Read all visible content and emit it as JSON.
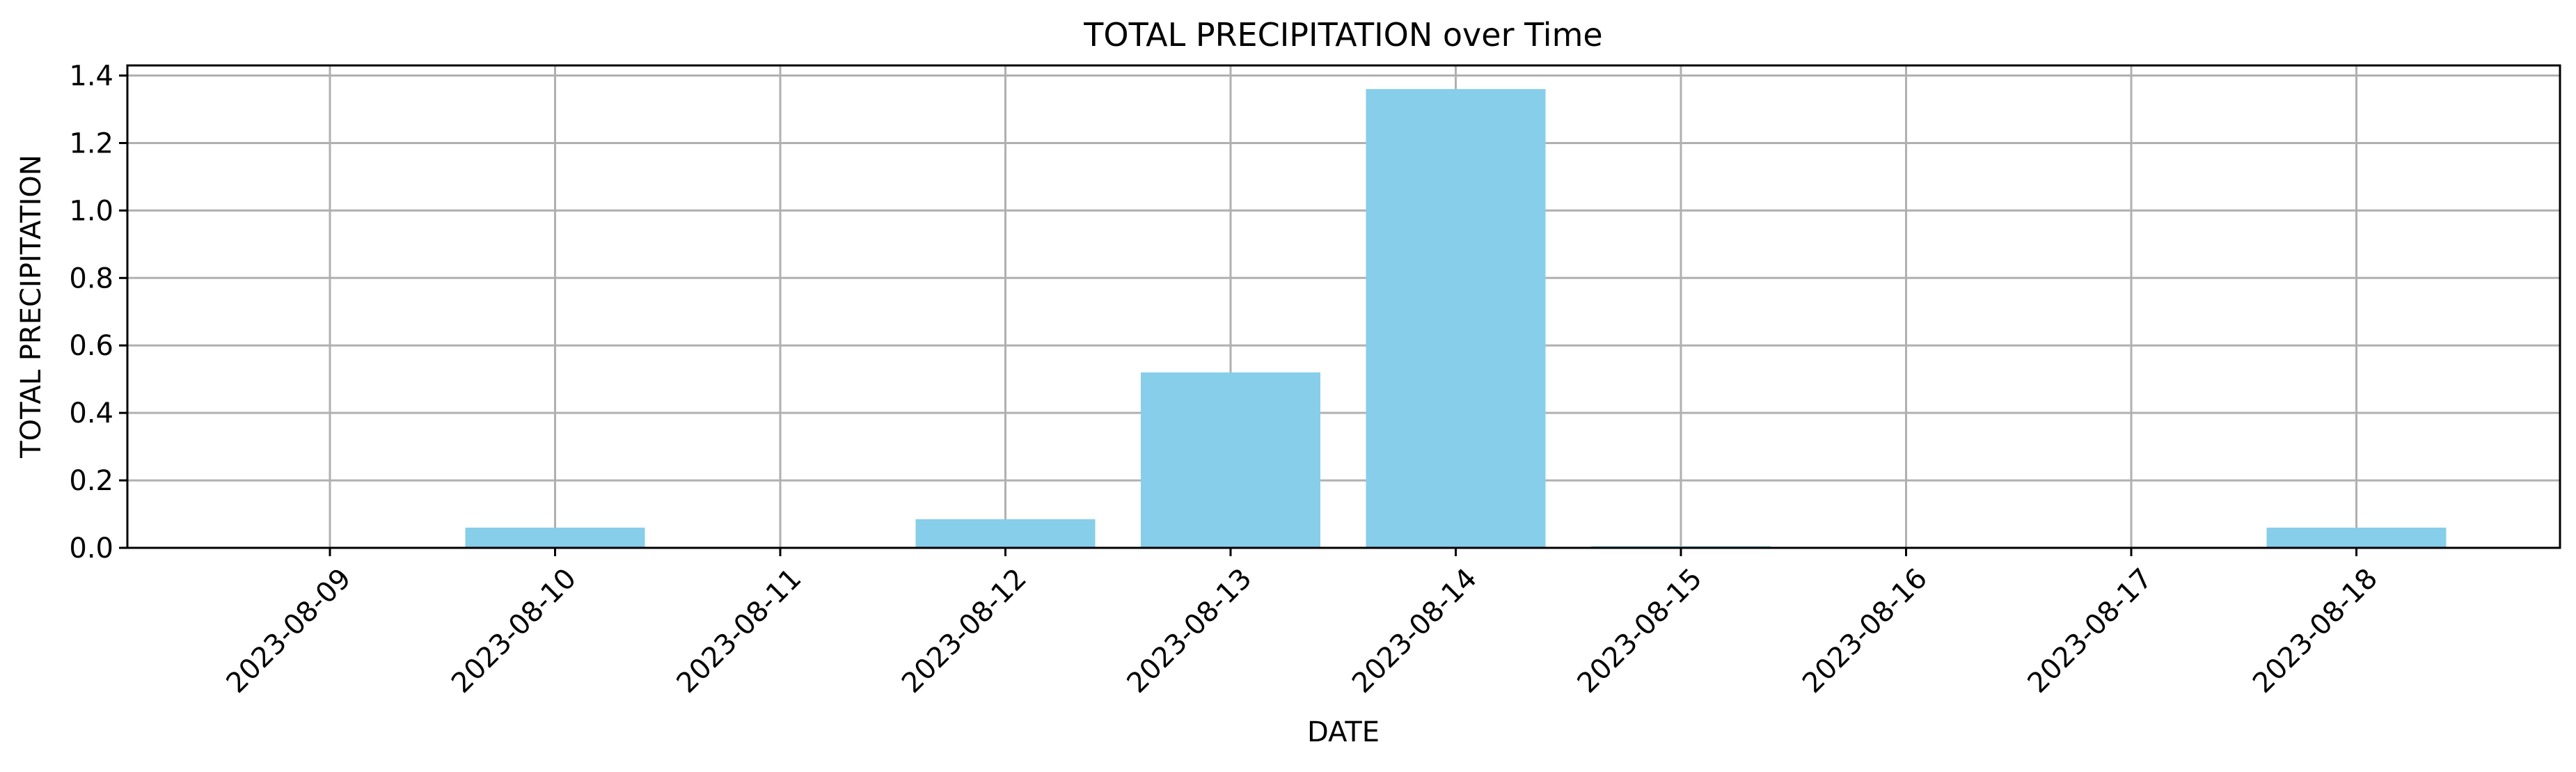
{
  "chart_data": {
    "type": "bar",
    "title": "TOTAL PRECIPITATION over Time",
    "xlabel": "DATE",
    "ylabel": "TOTAL PRECIPITATION",
    "categories": [
      "2023-08-09",
      "2023-08-10",
      "2023-08-11",
      "2023-08-12",
      "2023-08-13",
      "2023-08-14",
      "2023-08-15",
      "2023-08-16",
      "2023-08-17",
      "2023-08-18"
    ],
    "values": [
      0.0,
      0.06,
      0.0,
      0.085,
      0.52,
      1.36,
      0.005,
      0.0,
      0.0,
      0.06
    ],
    "ylim": [
      0,
      1.43
    ],
    "yticks": [
      0.0,
      0.2,
      0.4,
      0.6,
      0.8,
      1.0,
      1.2,
      1.4
    ],
    "ytick_labels": [
      "0.0",
      "0.2",
      "0.4",
      "0.6",
      "0.8",
      "1.0",
      "1.2",
      "1.4"
    ],
    "grid": true,
    "bar_color": "#87ceeb",
    "grid_color": "#b0b0b0"
  }
}
